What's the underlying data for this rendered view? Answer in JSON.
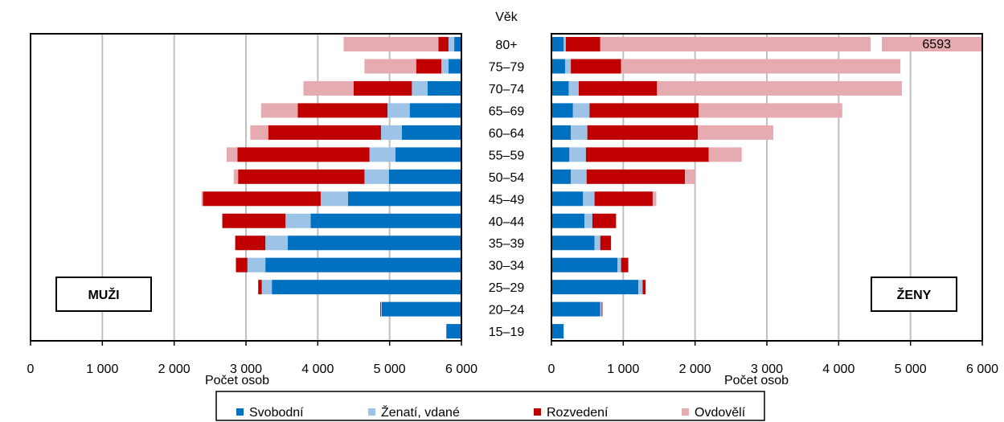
{
  "chart_data": {
    "type": "bar",
    "orientation": "horizontal",
    "layout": "population pyramid",
    "center_title": "Věk",
    "categories": [
      "80+",
      "75–79",
      "70–74",
      "65–69",
      "60–64",
      "55–59",
      "50–54",
      "45–49",
      "40–44",
      "35–39",
      "30–34",
      "25–29",
      "20–24",
      "15–19"
    ],
    "xlim": [
      0,
      6000
    ],
    "xticks": [
      0,
      1000,
      2000,
      3000,
      4000,
      5000,
      6000
    ],
    "xtick_labels_left": [
      "6 000",
      "5 000",
      "4 000",
      "3 000",
      "2 000",
      "1 000",
      "0"
    ],
    "xtick_labels_right": [
      "0",
      "1 000",
      "2 000",
      "3 000",
      "4 000",
      "5 000",
      "6 000"
    ],
    "xlabel": "Počet osob",
    "grid": true,
    "legend": {
      "placement": "bottom",
      "entries": [
        "Svobodní",
        "Ženatí, vdané",
        "Rozvedení",
        "Ovdovělí"
      ]
    },
    "colors": {
      "Svobodní": "#0070c0",
      "Ženatí, vdané": "#9dc3e6",
      "Rozvedení": "#c00000",
      "Ovdovělí": "#e6aab1"
    },
    "panels": [
      {
        "name": "MUŽI",
        "series": [
          {
            "name": "Svobodní",
            "values": [
              100,
              180,
              470,
              720,
              830,
              920,
              1010,
              1580,
              2100,
              2420,
              2730,
              2640,
              1110,
              210
            ]
          },
          {
            "name": "Ženatí, vdané",
            "values": [
              80,
              100,
              220,
              310,
              290,
              360,
              340,
              380,
              350,
              310,
              250,
              140,
              10,
              0
            ]
          },
          {
            "name": "Rozvedení",
            "values": [
              140,
              350,
              810,
              1250,
              1570,
              1840,
              1760,
              1640,
              880,
              420,
              160,
              50,
              10,
              0
            ]
          },
          {
            "name": "Ovdovělí",
            "values": [
              1320,
              720,
              700,
              510,
              250,
              150,
              60,
              20,
              0,
              0,
              0,
              0,
              0,
              0
            ]
          }
        ]
      },
      {
        "name": "ŽENY",
        "series": [
          {
            "name": "Svobodní",
            "values": [
              170,
              190,
              240,
              300,
              270,
              250,
              270,
              440,
              460,
              600,
              920,
              1210,
              680,
              170
            ]
          },
          {
            "name": "Ženatí, vdané",
            "values": [
              30,
              80,
              140,
              230,
              230,
              230,
              220,
              160,
              110,
              80,
              50,
              60,
              20,
              0
            ]
          },
          {
            "name": "Rozvedení",
            "values": [
              480,
              700,
              1090,
              1520,
              1540,
              1710,
              1370,
              810,
              330,
              150,
              100,
              40,
              10,
              0
            ]
          },
          {
            "name": "Ovdovělí",
            "values": [
              5913,
              3890,
              3410,
              2000,
              1050,
              460,
              140,
              50,
              0,
              0,
              0,
              0,
              0,
              0
            ]
          }
        ],
        "annotations": [
          {
            "category": "80+",
            "text": "6593"
          }
        ]
      }
    ]
  }
}
